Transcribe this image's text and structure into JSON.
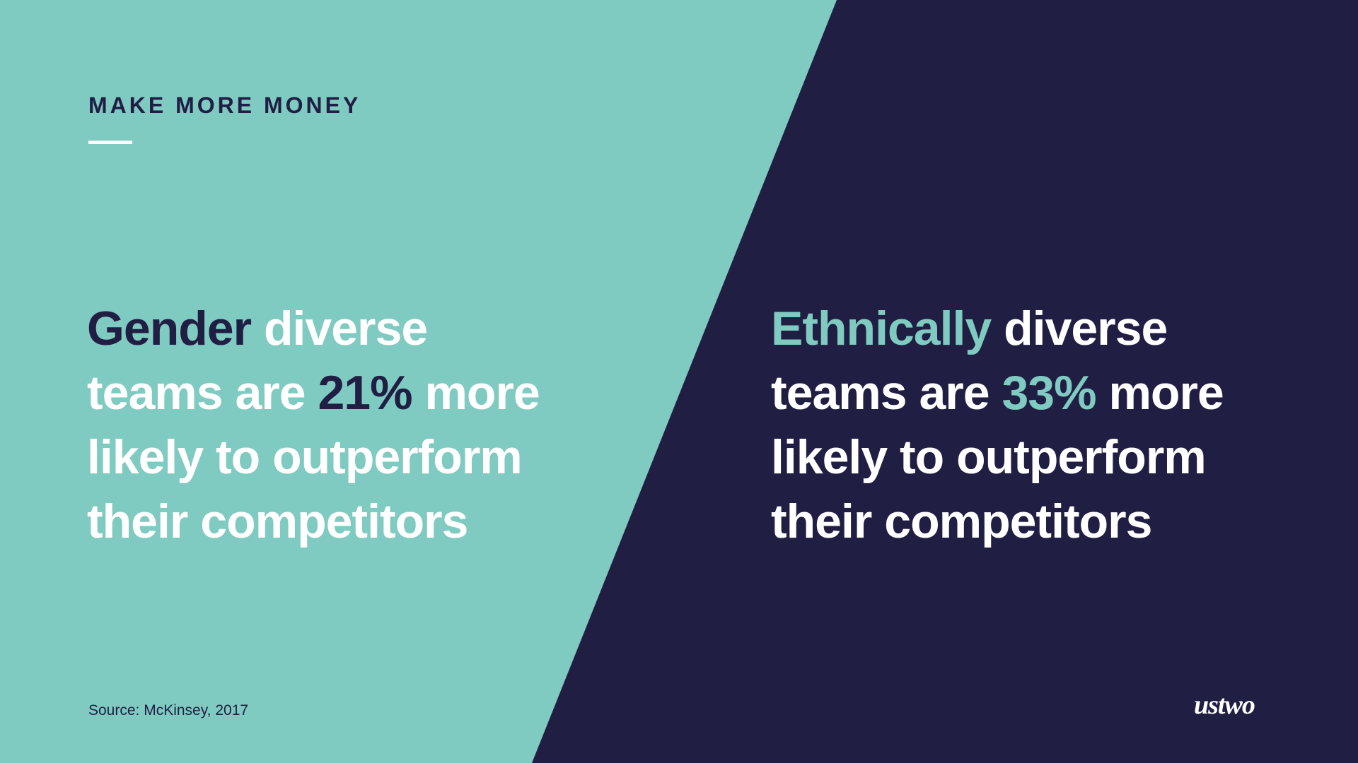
{
  "slide": {
    "heading": "MAKE MORE MONEY",
    "left": {
      "lines": [
        [
          "Gender",
          " diverse"
        ],
        [
          "teams are ",
          "21%",
          " more"
        ],
        [
          "likely to outperform"
        ],
        [
          "their competitors"
        ]
      ]
    },
    "right": {
      "lines": [
        [
          "Ethnically",
          " diverse"
        ],
        [
          "teams are ",
          "33%",
          " more"
        ],
        [
          "likely to outperform"
        ],
        [
          "their competitors"
        ]
      ]
    },
    "source": "Source: McKinsey, 2017",
    "logo": "ustwo"
  }
}
